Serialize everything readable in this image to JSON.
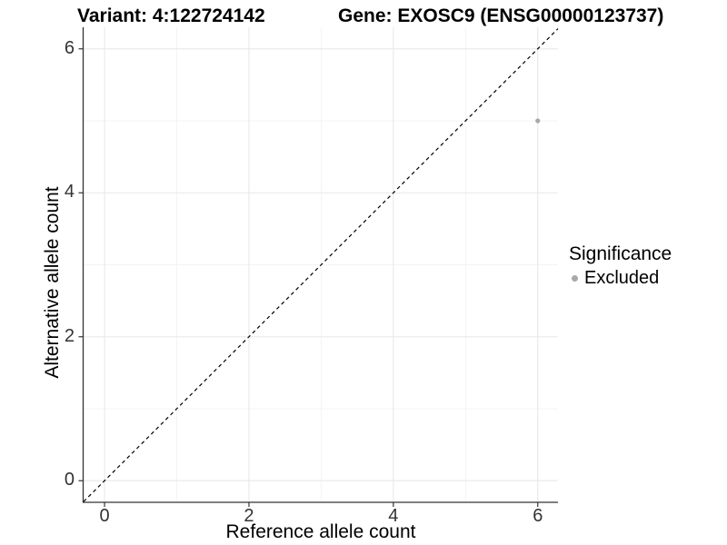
{
  "figure": {
    "title_left": "Variant: 4:122724142",
    "title_right": "Gene: EXOSC9 (ENSG00000123737)"
  },
  "chart_data": {
    "type": "scatter",
    "title": "Variant: 4:122724142   Gene: EXOSC9 (ENSG00000123737)",
    "xlabel": "Reference allele count",
    "ylabel": "Alternative allele count",
    "xlim": [
      -0.29,
      6.28
    ],
    "ylim": [
      -0.3,
      6.3
    ],
    "xticks": [
      0,
      2,
      4,
      6
    ],
    "yticks": [
      0,
      2,
      4,
      6
    ],
    "xticks_minor": [
      1,
      3,
      5
    ],
    "yticks_minor": [
      1,
      3,
      5
    ],
    "grid": "major and minor gridlines on, white background",
    "reference_line": {
      "type": "identity",
      "equation": "y = x",
      "style": "dashed",
      "color": "#000000"
    },
    "series": [
      {
        "name": "Excluded",
        "color": "#a9a9a9",
        "points": [
          {
            "x": 6,
            "y": 5
          }
        ]
      }
    ],
    "legend": {
      "title": "Significance",
      "position": "right",
      "items": [
        {
          "label": "Excluded",
          "color": "#a9a9a9",
          "marker": "circle"
        }
      ]
    }
  },
  "colors": {
    "background": "#ffffff",
    "grid_major": "#e8e8e8",
    "grid_minor": "#f3f3f3",
    "axis_line": "#333333",
    "tick_mark": "#333333",
    "tick_text": "#333333",
    "title_text": "#000000",
    "point": "#a9a9a9"
  }
}
